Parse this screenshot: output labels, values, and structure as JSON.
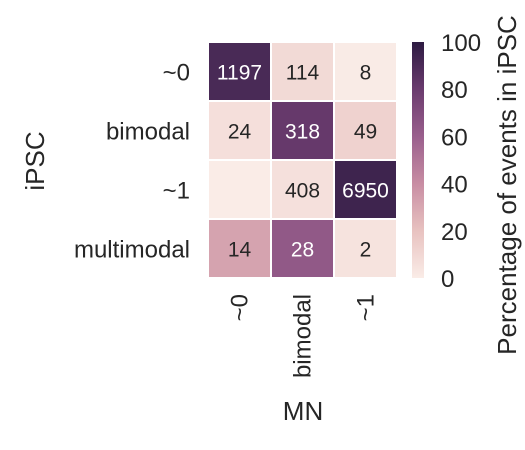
{
  "chart_data": {
    "type": "heatmap",
    "ylabel": "iPSC",
    "xlabel": "MN",
    "rows": [
      "~0",
      "bimodal",
      "~1",
      "multimodal"
    ],
    "cols": [
      "~0",
      "bimodal",
      "~1"
    ],
    "counts": [
      [
        "1197",
        "114",
        "8"
      ],
      [
        "24",
        "318",
        "49"
      ],
      [
        "",
        "408",
        "6950"
      ],
      [
        "14",
        "28",
        "2"
      ]
    ],
    "percent": [
      [
        90.8,
        8.6,
        0.6
      ],
      [
        6.1,
        81.3,
        12.5
      ],
      [
        0.0,
        5.5,
        94.5
      ],
      [
        31.8,
        63.6,
        4.5
      ]
    ],
    "colorbar": {
      "label": "Percentage of events in iPSC",
      "ticks": [
        "0",
        "20",
        "40",
        "60",
        "80",
        "100"
      ],
      "range": [
        0,
        100
      ]
    },
    "colormap": [
      "#faece7",
      "#e8c2c0",
      "#c88da3",
      "#9a5f8d",
      "#6a3b6e",
      "#2d1b42"
    ]
  }
}
